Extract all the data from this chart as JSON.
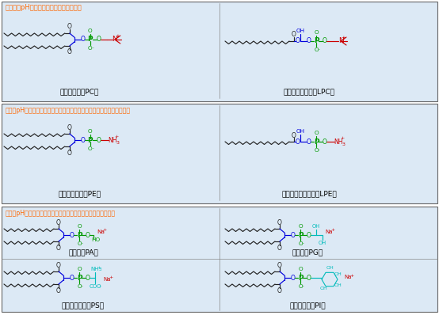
{
  "bg_color": "#ffffff",
  "panel_bg": "#dce9f5",
  "border_color": "#666666",
  "title_color": "#FF6600",
  "c_chain": "#222222",
  "c_glycerol": "#0000DD",
  "c_phosphate": "#009900",
  "c_choline": "#CC0000",
  "c_hydroxyl": "#00BBBB",
  "panel1_title": "无论生理pH或酸碱性都呈献两性离子状态",
  "panel2_title": "在生理pH下呈献两性离子状态，碱性条件下成阴离子，酸型条件成阳离子",
  "panel3_title": "在生理pH或碱性条件下呈献阴性离子状态，酸型条件成中性状态",
  "label_PC": "磷脂酰胆碱（PC）",
  "label_LPC": "溶血磷脂酰胆碱（LPC）",
  "label_PE": "磷脂酰乙醇胺（PE）",
  "label_LPE": "溶血磷脂酰乙醇胺（LPE）",
  "label_PA": "磷脂酸（PA）",
  "label_PG": "磷脂酸（PG）",
  "label_PS": "磷酸酰丝氨酸（PS）",
  "label_PI": "磷酰酰肌醇（PI）"
}
